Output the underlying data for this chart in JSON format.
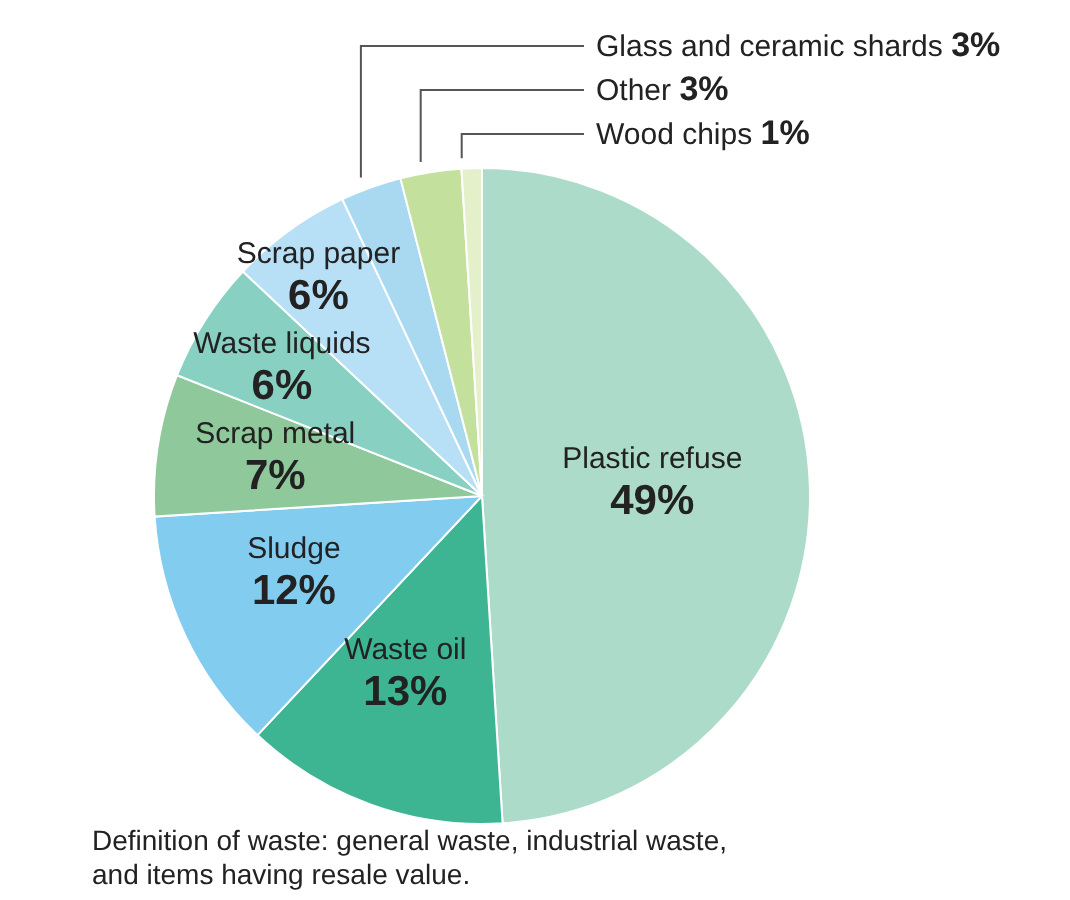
{
  "chart_data": {
    "type": "pie",
    "categories": [
      "Plastic refuse",
      "Waste oil",
      "Sludge",
      "Scrap metal",
      "Waste liquids",
      "Scrap paper",
      "Glass and ceramic shards",
      "Other",
      "Wood chips"
    ],
    "values": [
      49,
      13,
      12,
      7,
      6,
      6,
      3,
      3,
      1
    ],
    "colors": [
      "#acdcc9",
      "#3db593",
      "#82ccf0",
      "#8fc99b",
      "#88d0c2",
      "#b7dff5",
      "#a8d9f1",
      "#c4e09d",
      "#e4f0c9"
    ],
    "value_labels": [
      "49%",
      "13%",
      "12%",
      "7%",
      "6%",
      "6%",
      "3%",
      "3%",
      "1%"
    ],
    "annotations": [
      "Definition of waste: general waste, industrial waste, and items having resale value."
    ]
  }
}
